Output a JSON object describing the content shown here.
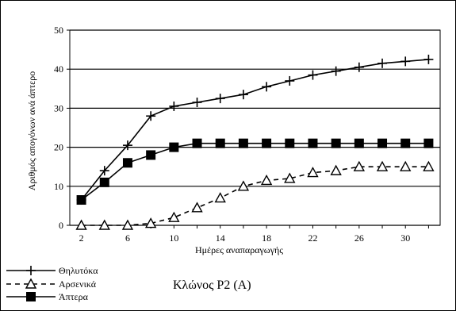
{
  "chart_data": {
    "type": "line",
    "caption": "Κλώνος P2 (A)",
    "xlabel": "Ημέρες αναπαραγωγής",
    "ylabel": "Αριθμός απογόνων ανά άπτερο",
    "xlim": [
      1,
      33
    ],
    "ylim": [
      0,
      50
    ],
    "x_ticks": [
      2,
      6,
      10,
      14,
      18,
      22,
      26,
      30
    ],
    "y_ticks": [
      0,
      10,
      20,
      30,
      40,
      50
    ],
    "grid": "horizontal",
    "legend_position": "bottom-left",
    "x": [
      2,
      4,
      6,
      8,
      10,
      12,
      14,
      16,
      18,
      20,
      22,
      24,
      26,
      28,
      30,
      32
    ],
    "series": [
      {
        "name": "Θηλυτόκα",
        "marker": "plus",
        "line_style": "solid",
        "color": "#000000",
        "values": [
          6.5,
          14,
          20.5,
          28,
          30.5,
          31.5,
          32.5,
          33.5,
          35.5,
          37,
          38.5,
          39.5,
          40.5,
          41.5,
          42,
          42.5
        ]
      },
      {
        "name": "Αρσενικά",
        "marker": "triangle-open",
        "line_style": "dashed",
        "color": "#000000",
        "values": [
          0,
          0,
          0,
          0.5,
          2,
          4.5,
          7,
          10,
          11.5,
          12,
          13.5,
          14,
          15,
          15,
          15,
          15
        ]
      },
      {
        "name": "Άπτερα",
        "marker": "square-filled",
        "line_style": "solid",
        "color": "#000000",
        "values": [
          6.5,
          11,
          16,
          18,
          20,
          21,
          21,
          21,
          21,
          21,
          21,
          21,
          21,
          21,
          21,
          21
        ]
      }
    ]
  }
}
